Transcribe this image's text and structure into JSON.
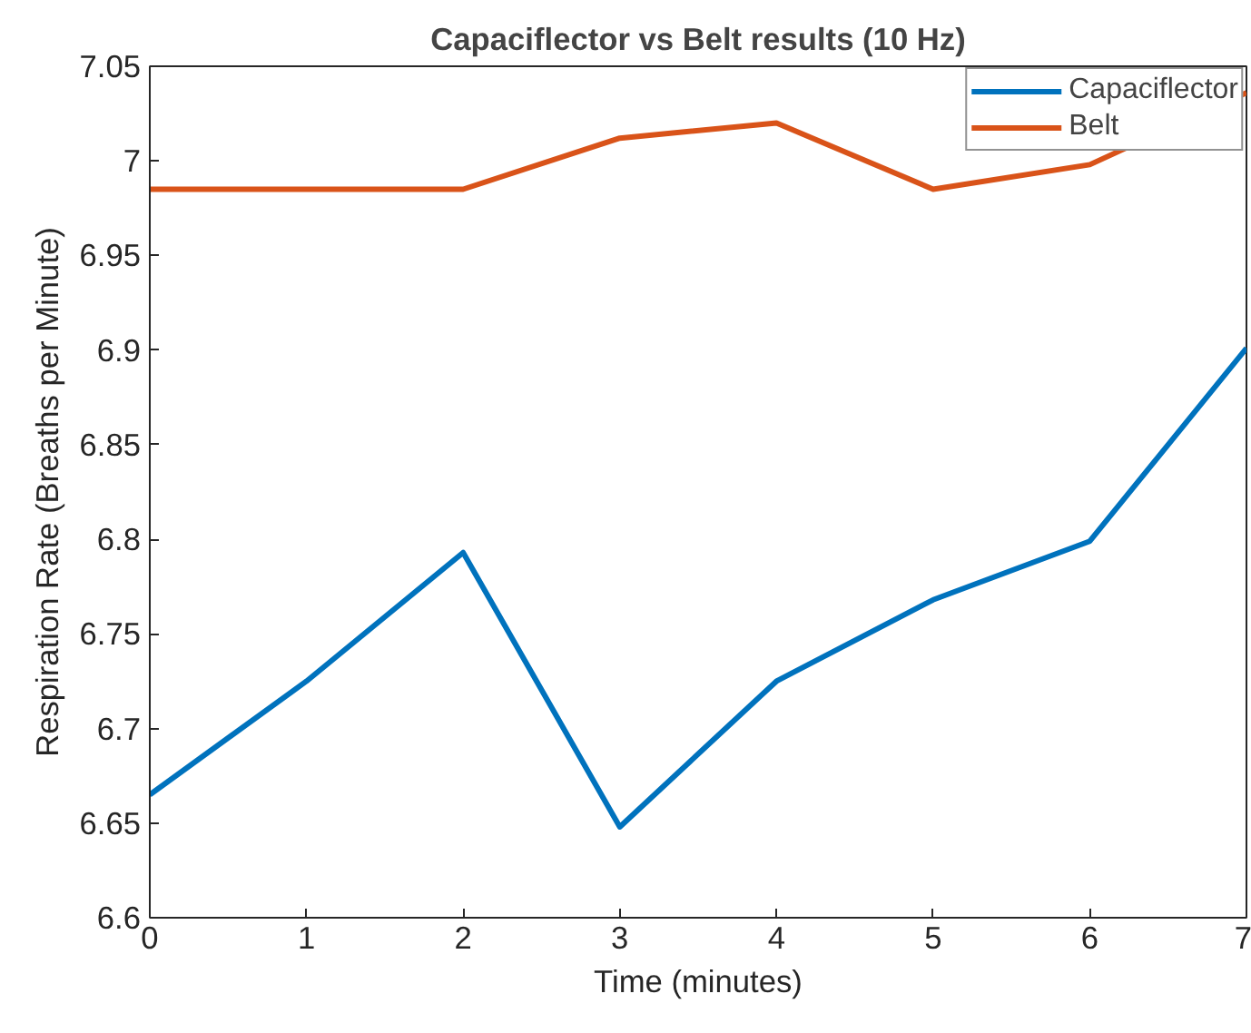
{
  "chart_data": {
    "type": "line",
    "title": "Capaciflector vs Belt results (10 Hz)",
    "xlabel": "Time (minutes)",
    "ylabel": "Respiration Rate (Breaths per Minute)",
    "x": [
      0,
      1,
      2,
      3,
      4,
      5,
      6,
      7
    ],
    "series": [
      {
        "name": "Capaciflector",
        "color": "#0072bd",
        "values": [
          6.665,
          6.725,
          6.793,
          6.648,
          6.725,
          6.768,
          6.799,
          6.901
        ]
      },
      {
        "name": "Belt",
        "color": "#d95319",
        "values": [
          6.985,
          6.985,
          6.985,
          7.012,
          7.02,
          6.985,
          6.998,
          7.036
        ]
      }
    ],
    "xlim": [
      0,
      7
    ],
    "xticks": [
      0,
      1,
      2,
      3,
      4,
      5,
      6,
      7
    ],
    "ylim": [
      6.6,
      7.05
    ],
    "yticks": [
      6.6,
      6.65,
      6.7,
      6.75,
      6.8,
      6.85,
      6.9,
      6.95,
      7,
      7.05
    ],
    "grid": false,
    "legend": "top right",
    "line_style": "solid"
  }
}
